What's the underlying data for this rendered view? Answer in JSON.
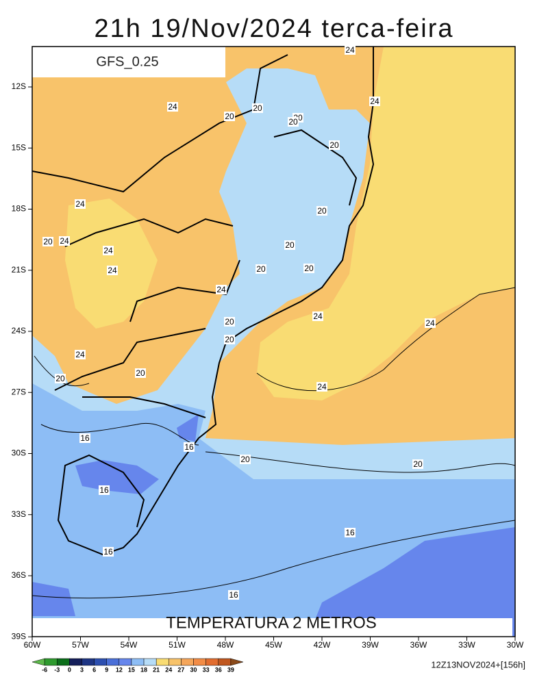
{
  "title": "21h 19/Nov/2024 terca-feira",
  "model": "GFS_0.25",
  "subtitle": "TEMPERATURA 2 METROS",
  "run": "12Z13NOV2024+[156h]",
  "lat_ticks": [
    "12S",
    "15S",
    "18S",
    "21S",
    "24S",
    "27S",
    "30S",
    "33S",
    "36S",
    "39S"
  ],
  "lon_ticks": [
    "60W",
    "57W",
    "54W",
    "51W",
    "48W",
    "45W",
    "42W",
    "39W",
    "36W",
    "33W",
    "30W"
  ],
  "contour_labels": [
    "24",
    "24",
    "24",
    "20",
    "20",
    "20",
    "20",
    "20",
    "24",
    "20",
    "20",
    "24",
    "24",
    "20",
    "24",
    "20",
    "20",
    "24",
    "24",
    "20",
    "24",
    "20",
    "24",
    "20",
    "20",
    "24",
    "16",
    "16",
    "20",
    "20",
    "16",
    "16",
    "16",
    "16"
  ],
  "colorbar": {
    "labels": [
      -6,
      -3,
      0,
      3,
      6,
      9,
      12,
      15,
      18,
      21,
      24,
      27,
      30,
      33,
      36,
      39
    ],
    "colors": [
      "#5cb84a",
      "#2e9a2e",
      "#0b6e1a",
      "#141e5a",
      "#1e3584",
      "#2c4fb0",
      "#4a6fd8",
      "#6686ec",
      "#8dbdf5",
      "#b6dcf7",
      "#f9dc73",
      "#f8c36a",
      "#f5a65a",
      "#f28c46",
      "#e26d2f",
      "#c0571f",
      "#8a4a1a"
    ]
  }
}
